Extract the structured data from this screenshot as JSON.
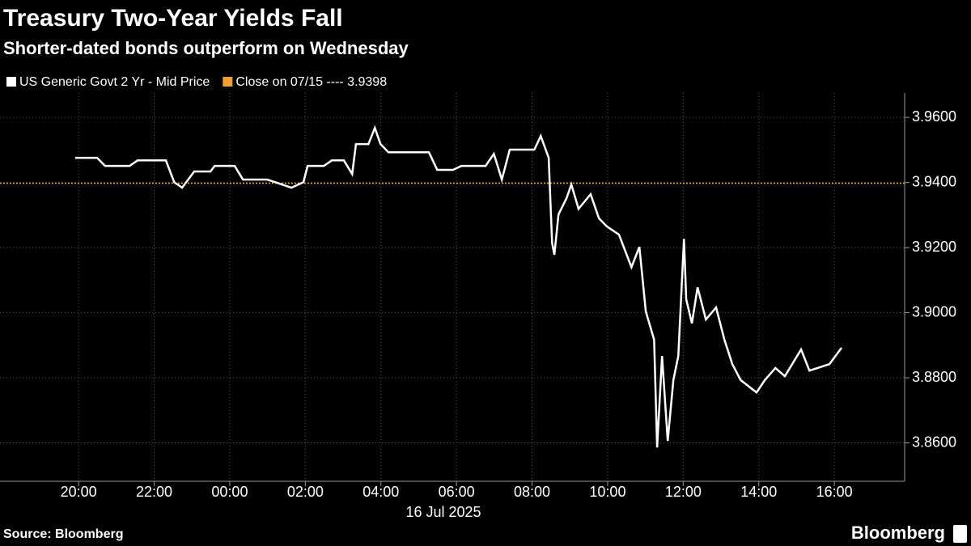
{
  "chart_data": {
    "type": "line",
    "title": "Treasury Two-Year Yields Fall",
    "subtitle": "Shorter-dated bonds outperform on Wednesday",
    "date_label": "16 Jul 2025",
    "source": "Source: Bloomberg",
    "brand": "Bloomberg",
    "x": [
      -4.09,
      -3.51,
      -3.3,
      -2.65,
      -2.44,
      -1.69,
      -1.47,
      -1.26,
      -0.94,
      -0.51,
      -0.4,
      0.13,
      0.35,
      0.99,
      1.2,
      1.63,
      1.95,
      2.06,
      2.49,
      2.7,
      3.02,
      3.24,
      3.34,
      3.67,
      3.84,
      3.99,
      4.2,
      5.27,
      5.49,
      5.91,
      6.13,
      6.77,
      6.99,
      7.2,
      7.41,
      8.06,
      8.23,
      8.44,
      8.53,
      8.59,
      8.7,
      8.91,
      9.04,
      9.23,
      9.55,
      9.77,
      9.98,
      10.3,
      10.63,
      10.84,
      11.01,
      11.23,
      11.31,
      11.44,
      11.59,
      11.74,
      11.87,
      12.02,
      12.08,
      12.23,
      12.38,
      12.6,
      12.87,
      13.09,
      13.3,
      13.52,
      13.94,
      14.16,
      14.44,
      14.69,
      15.12,
      15.34,
      15.87,
      16.19
    ],
    "series": [
      {
        "name": "US Generic Govt 2 Yr - Mid Price",
        "color": "#ffffff",
        "values": [
          3.9476,
          3.9476,
          3.9451,
          3.9451,
          3.9468,
          3.9468,
          3.9401,
          3.9384,
          3.9434,
          3.9434,
          3.9451,
          3.9451,
          3.9409,
          3.9409,
          3.9401,
          3.9384,
          3.9401,
          3.9451,
          3.9451,
          3.9468,
          3.9468,
          3.9426,
          3.9518,
          3.9518,
          3.9568,
          3.9518,
          3.9493,
          3.9493,
          3.9439,
          3.9439,
          3.9451,
          3.9451,
          3.9488,
          3.9409,
          3.9501,
          3.9501,
          3.9543,
          3.9476,
          3.9215,
          3.9178,
          3.9302,
          3.9351,
          3.9394,
          3.9319,
          3.9364,
          3.929,
          3.9265,
          3.924,
          3.914,
          3.9202,
          3.9004,
          3.8917,
          3.8586,
          3.8867,
          3.8606,
          3.8793,
          3.8867,
          3.9227,
          3.9041,
          3.8967,
          3.9078,
          3.8979,
          3.9016,
          3.8917,
          3.8842,
          3.8793,
          3.8755,
          3.8793,
          3.883,
          3.8805,
          3.8887,
          3.8822,
          3.8842,
          3.8892
        ]
      }
    ],
    "reference_lines": [
      {
        "name": "Close on 07/15 ---- 3.9398",
        "value": 3.9398,
        "color": "#f39f2b"
      }
    ],
    "xlim": [
      -6.08,
      17.86
    ],
    "ylim": [
      3.8482,
      3.9675
    ],
    "xticks": [
      {
        "value": -4,
        "label": "20:00"
      },
      {
        "value": -2,
        "label": "22:00"
      },
      {
        "value": 0,
        "label": "00:00"
      },
      {
        "value": 2,
        "label": "02:00"
      },
      {
        "value": 4,
        "label": "04:00"
      },
      {
        "value": 6,
        "label": "06:00"
      },
      {
        "value": 8,
        "label": "08:00"
      },
      {
        "value": 10,
        "label": "10:00"
      },
      {
        "value": 12,
        "label": "12:00"
      },
      {
        "value": 14,
        "label": "14:00"
      },
      {
        "value": 16,
        "label": "16:00"
      }
    ],
    "yticks": [
      {
        "value": 3.96,
        "label": "3.9600"
      },
      {
        "value": 3.94,
        "label": "3.9400"
      },
      {
        "value": 3.92,
        "label": "3.9200"
      },
      {
        "value": 3.9,
        "label": "3.9000"
      },
      {
        "value": 3.88,
        "label": "3.8800"
      },
      {
        "value": 3.86,
        "label": "3.8600"
      }
    ],
    "grid": true
  }
}
